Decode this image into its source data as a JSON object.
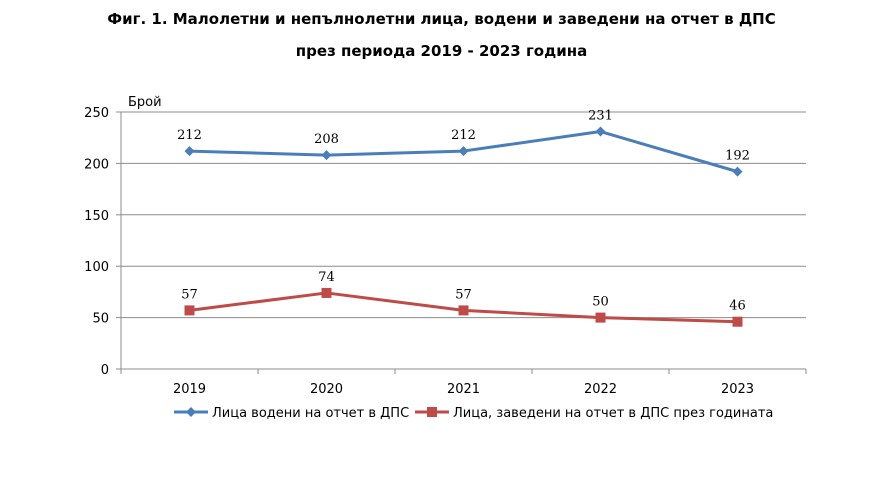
{
  "chart_data": {
    "type": "line",
    "title": "Фиг. 1. Малолетни и непълнолетни лица, водени и заведени на отчет в ДПС",
    "subtitle": "през периода 2019 - 2023 година",
    "ylabel": "Брой",
    "xlabel": "",
    "categories": [
      "2019",
      "2020",
      "2021",
      "2022",
      "2023"
    ],
    "ylim": [
      0,
      250
    ],
    "yticks": [
      0,
      50,
      100,
      150,
      200,
      250
    ],
    "grid": true,
    "legend_position": "bottom",
    "series": [
      {
        "name": "Лица водени на отчет в ДПС",
        "values": [
          212,
          208,
          212,
          231,
          192
        ],
        "color": "#4a7ebb",
        "marker": "diamond"
      },
      {
        "name": "Лица, заведени на отчет в ДПС през годината",
        "values": [
          57,
          74,
          57,
          50,
          46
        ],
        "color": "#be4b48",
        "marker": "square"
      }
    ]
  }
}
